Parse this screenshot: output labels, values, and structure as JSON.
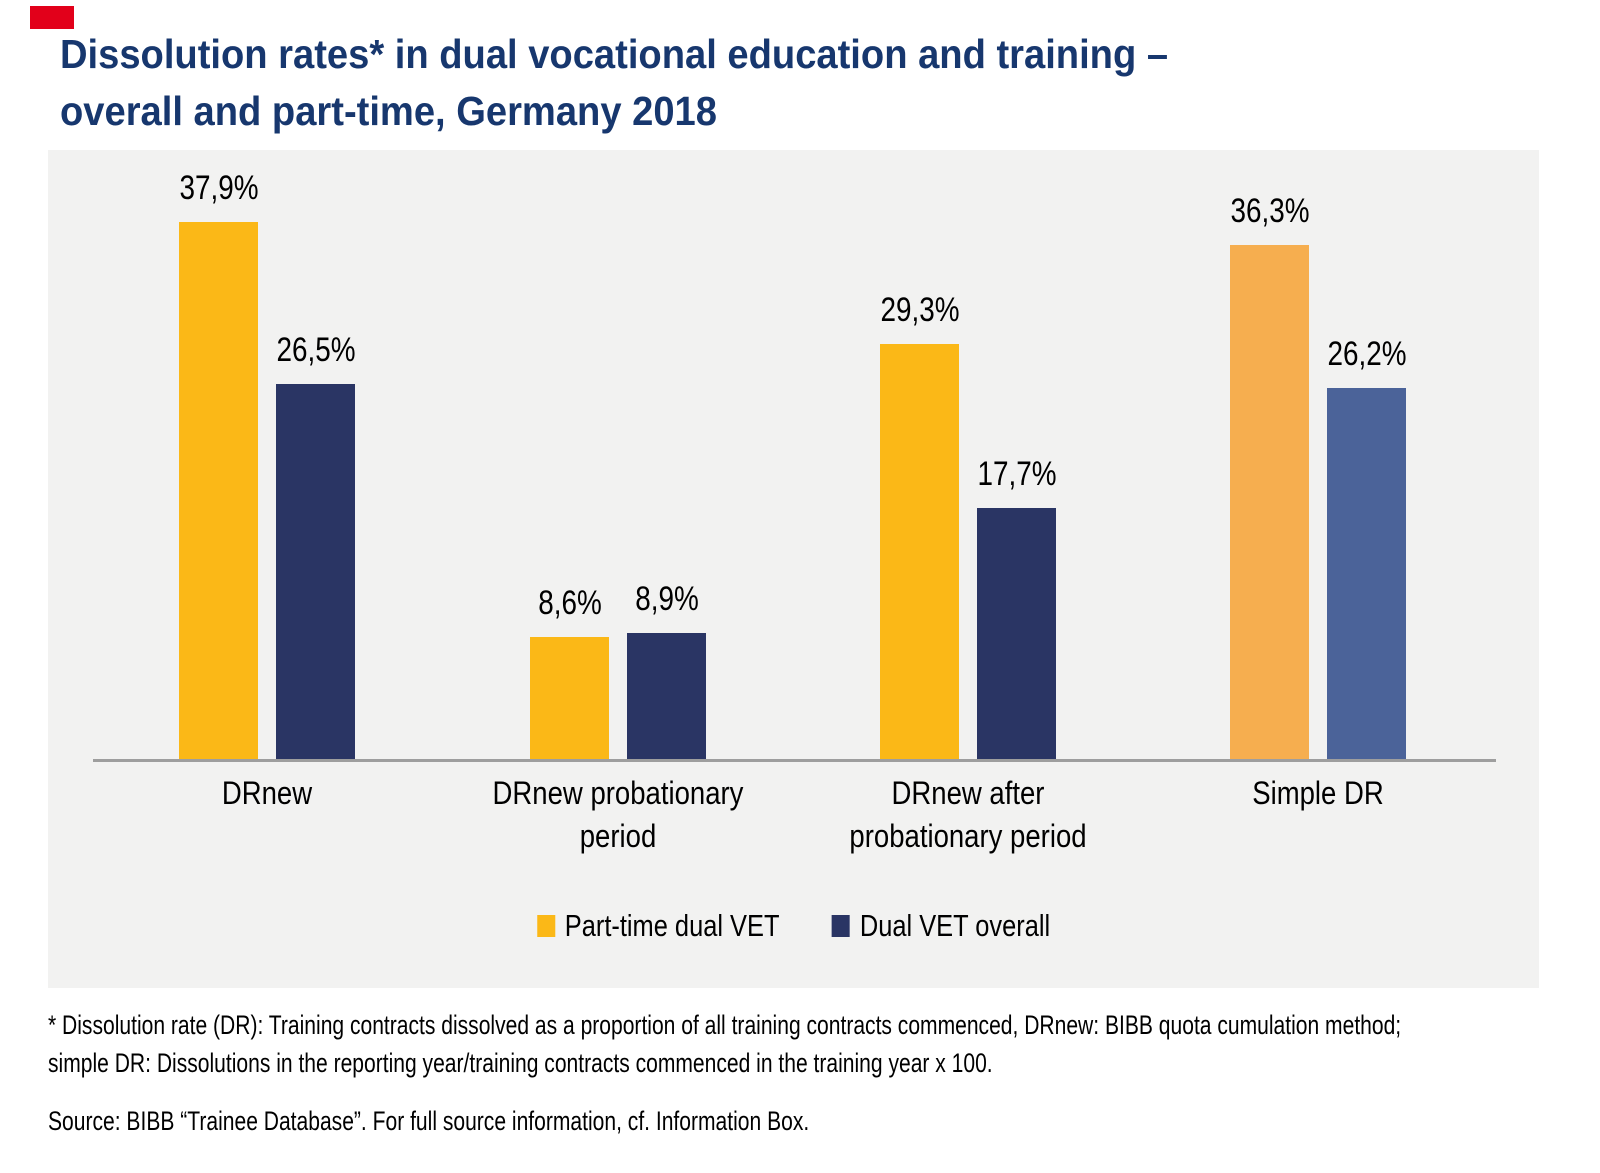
{
  "page": {
    "title_lines": [
      "Dissolution rates* in dual vocational education and training –",
      "overall and part-time, Germany 2018"
    ]
  },
  "colors": {
    "title": "#17376E",
    "panel_background": "#F2F2F1",
    "axis_line": "#9E9E9E",
    "corner_mark": "#E2001A",
    "part_time_yellow": "#FBB817",
    "overall_navy": "#2A3564",
    "part_time_light_orange": "#F6AE4F",
    "overall_light_blue": "#4B6399"
  },
  "chart_data": {
    "type": "bar",
    "title": "Dissolution rates* in dual vocational education and training – overall and part-time, Germany 2018",
    "categories": [
      "DRnew",
      "DRnew probationary period",
      "DRnew after probationary period",
      "Simple DR"
    ],
    "category_lines": [
      [
        "DRnew"
      ],
      [
        "DRnew probationary",
        "period"
      ],
      [
        "DRnew after",
        "probationary period"
      ],
      [
        "Simple DR"
      ]
    ],
    "series": [
      {
        "name": "Part-time dual VET",
        "values": [
          37.9,
          8.6,
          29.3,
          36.3
        ],
        "legend_color": "#FBB817",
        "bar_colors": [
          "#FBB817",
          "#FBB817",
          "#FBB817",
          "#F6AE4F"
        ]
      },
      {
        "name": "Dual VET overall",
        "values": [
          26.5,
          8.9,
          17.7,
          26.2
        ],
        "legend_color": "#2A3564",
        "bar_colors": [
          "#2A3564",
          "#2A3564",
          "#2A3564",
          "#4B6399"
        ]
      }
    ],
    "value_labels": [
      [
        "37,9%",
        "8,6%",
        "29,3%",
        "36,3%"
      ],
      [
        "26,5%",
        "8,9%",
        "17,7%",
        "26,2%"
      ]
    ],
    "xlabel": "",
    "ylabel": "",
    "ylim": [
      0,
      43
    ],
    "grid": false,
    "legend_position": "bottom"
  },
  "footnote": {
    "lines": [
      "* Dissolution rate (DR): Training contracts dissolved as a proportion of all training contracts commenced, DRnew: BIBB quota cumulation method;",
      "simple DR: Dissolutions in the reporting year/training contracts commenced in the training year x 100."
    ]
  },
  "source": {
    "text": "Source: BIBB “Trainee Database”. For full source information, cf. Information Box."
  }
}
